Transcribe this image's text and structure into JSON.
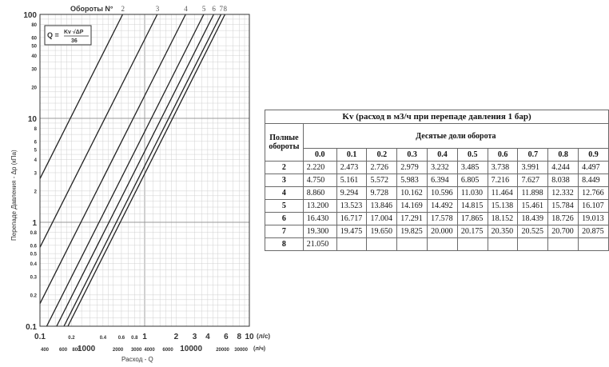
{
  "chart_data": [
    {
      "type": "line",
      "title": "Обороты N°",
      "xlabel": "Расход - Q",
      "ylabel": "Перепаде Давления - Δp (кПа)",
      "x_unit": "(л/с)",
      "x2_unit": "(л/ч)",
      "formula": {
        "lhs": "Q =",
        "numerator": "Kv √ΔP",
        "denominator": "36"
      },
      "x_scale": "log",
      "y_scale": "log",
      "xlim": [
        0.1,
        10
      ],
      "ylim": [
        0.1,
        100
      ],
      "grid": true,
      "x_ticks": [
        "0.1",
        "0.2",
        "0.4",
        "0.6",
        "0.8",
        "1",
        "2",
        "3",
        "4",
        "6",
        "8",
        "10"
      ],
      "x2_ticks": [
        "400",
        "600",
        "800",
        "1000",
        "2000",
        "3000",
        "4000",
        "6000",
        "10000",
        "20000",
        "30000"
      ],
      "y_ticks": [
        "0.1",
        "0.2",
        "0.3",
        "0.4",
        "0.5",
        "0.6",
        "0.8",
        "1",
        "2",
        "3",
        "4",
        "5",
        "6",
        "8",
        "10",
        "20",
        "30",
        "40",
        "50",
        "60",
        "80",
        "100"
      ],
      "series": [
        {
          "name": "2",
          "kv": 2.22
        },
        {
          "name": "3",
          "kv": 4.75
        },
        {
          "name": "4",
          "kv": 8.86
        },
        {
          "name": "5",
          "kv": 13.2
        },
        {
          "name": "6",
          "kv": 16.43
        },
        {
          "name": "7",
          "kv": 19.3
        },
        {
          "name": "8",
          "kv": 21.05
        }
      ]
    },
    {
      "type": "table",
      "title": "Kv (расход в м3/ч при перепаде давления 1 бар)",
      "row_header": "Полные обороты",
      "col_header": "Десятые доли оборота",
      "columns": [
        "0.0",
        "0.1",
        "0.2",
        "0.3",
        "0.4",
        "0.5",
        "0.6",
        "0.7",
        "0.8",
        "0.9"
      ],
      "rows": [
        {
          "turn": "2",
          "values": [
            "2.220",
            "2.473",
            "2.726",
            "2.979",
            "3.232",
            "3.485",
            "3.738",
            "3.991",
            "4.244",
            "4.497"
          ]
        },
        {
          "turn": "3",
          "values": [
            "4.750",
            "5.161",
            "5.572",
            "5.983",
            "6.394",
            "6.805",
            "7.216",
            "7.627",
            "8.038",
            "8.449"
          ]
        },
        {
          "turn": "4",
          "values": [
            "8.860",
            "9.294",
            "9.728",
            "10.162",
            "10.596",
            "11.030",
            "11.464",
            "11.898",
            "12.332",
            "12.766"
          ]
        },
        {
          "turn": "5",
          "values": [
            "13.200",
            "13.523",
            "13.846",
            "14.169",
            "14.492",
            "14.815",
            "15.138",
            "15.461",
            "15.784",
            "16.107"
          ]
        },
        {
          "turn": "6",
          "values": [
            "16.430",
            "16.717",
            "17.004",
            "17.291",
            "17.578",
            "17.865",
            "18.152",
            "18.439",
            "18.726",
            "19.013"
          ]
        },
        {
          "turn": "7",
          "values": [
            "19.300",
            "19.475",
            "19.650",
            "19.825",
            "20.000",
            "20.175",
            "20.350",
            "20.525",
            "20.700",
            "20.875"
          ]
        },
        {
          "turn": "8",
          "values": [
            "21.050",
            "",
            "",
            "",
            "",
            "",
            "",
            "",
            "",
            ""
          ]
        }
      ]
    }
  ]
}
